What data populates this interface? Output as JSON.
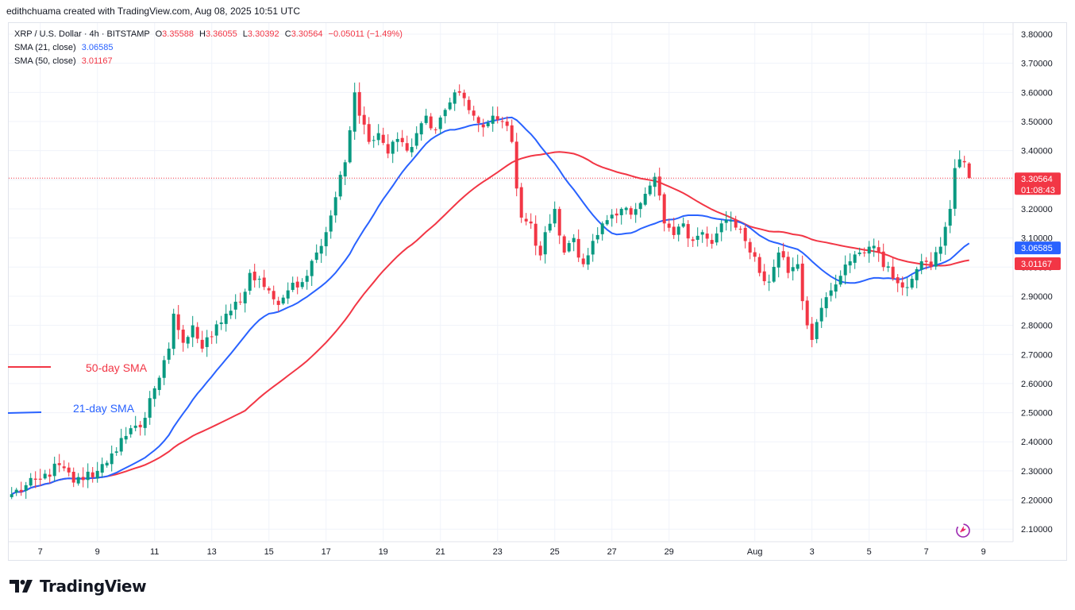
{
  "header": {
    "credit": "edithchuama created with TradingView.com, Aug 08, 2025 10:51 UTC"
  },
  "legend": {
    "symbol": "XRP / U.S. Dollar · 4h · BITSTAMP",
    "o_label": "O",
    "o": "3.35588",
    "h_label": "H",
    "h": "3.36055",
    "l_label": "L",
    "l": "3.30392",
    "c_label": "C",
    "c": "3.30564",
    "change": "−0.05011 (−1.49%)",
    "sma21_label": "SMA (21, close)",
    "sma21_value": "3.06585",
    "sma50_label": "SMA (50, close)",
    "sma50_value": "3.01167"
  },
  "annotations": {
    "sma50": "50-day SMA",
    "sma21": "21-day SMA"
  },
  "price_tags": {
    "last": "3.30564",
    "countdown": "01:08:43",
    "sma21": "3.06585",
    "sma50": "3.01167"
  },
  "footer": {
    "brand": "TradingView"
  },
  "colors": {
    "up": "#089981",
    "down": "#f23645",
    "sma21": "#2962ff",
    "sma50": "#f23645",
    "grid": "#f0f3fa",
    "axis_text": "#131722"
  },
  "chart_data": {
    "type": "candlestick",
    "title": "XRP / U.S. Dollar · 4h · BITSTAMP",
    "ylim": [
      2.05,
      3.85
    ],
    "y_ticks": [
      "3.80000",
      "3.70000",
      "3.60000",
      "3.50000",
      "3.40000",
      "3.30000",
      "3.20000",
      "3.10000",
      "3.00000",
      "2.90000",
      "2.80000",
      "2.70000",
      "2.60000",
      "2.50000",
      "2.40000",
      "2.30000",
      "2.20000",
      "2.10000"
    ],
    "x_ticks": [
      {
        "label": "7",
        "index": 6
      },
      {
        "label": "9",
        "index": 18
      },
      {
        "label": "11",
        "index": 30
      },
      {
        "label": "13",
        "index": 42
      },
      {
        "label": "15",
        "index": 54
      },
      {
        "label": "17",
        "index": 66
      },
      {
        "label": "19",
        "index": 78
      },
      {
        "label": "21",
        "index": 90
      },
      {
        "label": "23",
        "index": 102
      },
      {
        "label": "25",
        "index": 114
      },
      {
        "label": "27",
        "index": 126
      },
      {
        "label": "29",
        "index": 138
      },
      {
        "label": "Aug",
        "index": 156
      },
      {
        "label": "3",
        "index": 168
      },
      {
        "label": "5",
        "index": 180
      },
      {
        "label": "7",
        "index": 192
      },
      {
        "label": "9",
        "index": 204
      }
    ],
    "close_anchors": [
      [
        0,
        2.22
      ],
      [
        6,
        2.27
      ],
      [
        10,
        2.32
      ],
      [
        13,
        2.26
      ],
      [
        18,
        2.3
      ],
      [
        21,
        2.36
      ],
      [
        24,
        2.42
      ],
      [
        27,
        2.45
      ],
      [
        29,
        2.55
      ],
      [
        31,
        2.62
      ],
      [
        33,
        2.72
      ],
      [
        34,
        2.84
      ],
      [
        36,
        2.74
      ],
      [
        38,
        2.8
      ],
      [
        40,
        2.72
      ],
      [
        42,
        2.76
      ],
      [
        45,
        2.84
      ],
      [
        48,
        2.88
      ],
      [
        50,
        2.98
      ],
      [
        52,
        2.96
      ],
      [
        54,
        2.92
      ],
      [
        56,
        2.87
      ],
      [
        58,
        2.92
      ],
      [
        60,
        2.93
      ],
      [
        62,
        2.97
      ],
      [
        64,
        3.05
      ],
      [
        66,
        3.12
      ],
      [
        68,
        3.24
      ],
      [
        70,
        3.36
      ],
      [
        71,
        3.47
      ],
      [
        72,
        3.6
      ],
      [
        73,
        3.52
      ],
      [
        75,
        3.43
      ],
      [
        77,
        3.46
      ],
      [
        79,
        3.39
      ],
      [
        81,
        3.44
      ],
      [
        83,
        3.4
      ],
      [
        85,
        3.46
      ],
      [
        87,
        3.52
      ],
      [
        89,
        3.47
      ],
      [
        91,
        3.54
      ],
      [
        93,
        3.6
      ],
      [
        95,
        3.58
      ],
      [
        97,
        3.52
      ],
      [
        99,
        3.48
      ],
      [
        101,
        3.52
      ],
      [
        103,
        3.5
      ],
      [
        105,
        3.43
      ],
      [
        106,
        3.27
      ],
      [
        107,
        3.17
      ],
      [
        109,
        3.15
      ],
      [
        111,
        3.04
      ],
      [
        112,
        3.12
      ],
      [
        114,
        3.2
      ],
      [
        116,
        3.05
      ],
      [
        118,
        3.1
      ],
      [
        120,
        3.01
      ],
      [
        122,
        3.09
      ],
      [
        124,
        3.15
      ],
      [
        126,
        3.18
      ],
      [
        128,
        3.2
      ],
      [
        130,
        3.18
      ],
      [
        132,
        3.22
      ],
      [
        134,
        3.28
      ],
      [
        135,
        3.31
      ],
      [
        137,
        3.15
      ],
      [
        139,
        3.11
      ],
      [
        141,
        3.15
      ],
      [
        143,
        3.09
      ],
      [
        145,
        3.12
      ],
      [
        147,
        3.08
      ],
      [
        149,
        3.15
      ],
      [
        151,
        3.16
      ],
      [
        153,
        3.13
      ],
      [
        155,
        3.05
      ],
      [
        157,
        2.98
      ],
      [
        159,
        2.95
      ],
      [
        161,
        3.05
      ],
      [
        163,
        2.98
      ],
      [
        165,
        3.01
      ],
      [
        167,
        2.8
      ],
      [
        168,
        2.75
      ],
      [
        170,
        2.86
      ],
      [
        172,
        2.92
      ],
      [
        174,
        2.97
      ],
      [
        176,
        3.02
      ],
      [
        178,
        3.05
      ],
      [
        180,
        3.07
      ],
      [
        182,
        3.05
      ],
      [
        183,
        3.0
      ],
      [
        185,
        2.96
      ],
      [
        187,
        2.93
      ],
      [
        189,
        2.96
      ],
      [
        191,
        3.02
      ],
      [
        193,
        3.0
      ],
      [
        195,
        3.07
      ],
      [
        197,
        3.2
      ],
      [
        198,
        3.34
      ],
      [
        199,
        3.37
      ],
      [
        200,
        3.36
      ],
      [
        201,
        3.31
      ]
    ],
    "last_price": 3.30564,
    "series": [
      {
        "name": "SMA (21, close)",
        "last": 3.06585
      },
      {
        "name": "SMA (50, close)",
        "last": 3.01167
      }
    ]
  }
}
